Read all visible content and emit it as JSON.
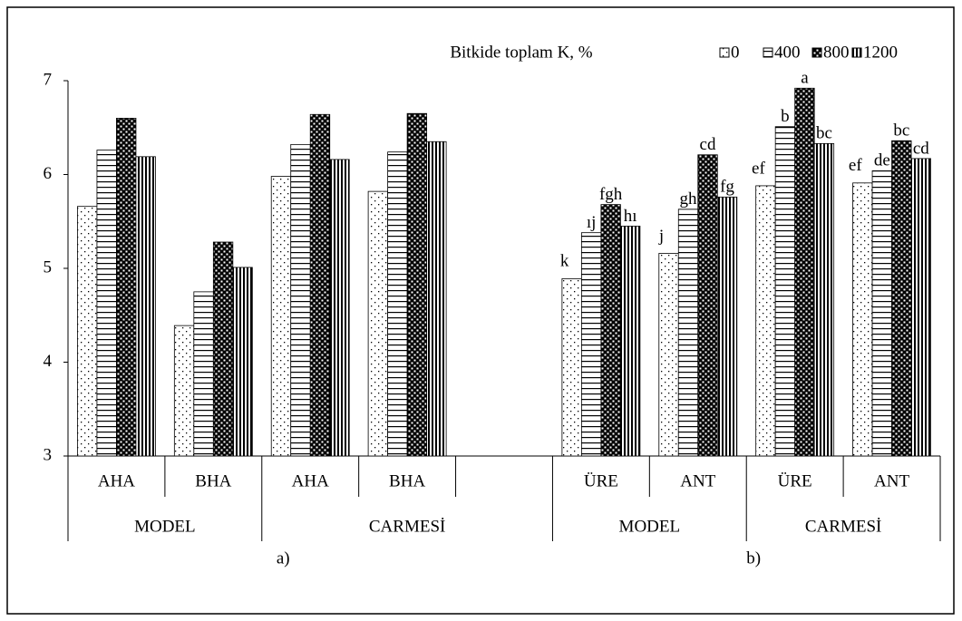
{
  "chart_data": {
    "type": "bar",
    "title": "Bitkide toplam K, %",
    "categories": [
      "AHA",
      "BHA",
      "AHA",
      "BHA",
      null,
      "ÜRE",
      "ANT",
      "ÜRE",
      "ANT"
    ],
    "groups": [
      {
        "name": "MODEL",
        "size": 2
      },
      {
        "name": "CARMESİ",
        "size": 3
      },
      {
        "name": "MODEL",
        "size": 2
      },
      {
        "name": "CARMESİ",
        "size": 2
      }
    ],
    "panels": [
      {
        "name": "a)",
        "size": 5
      },
      {
        "name": "b)",
        "size": 4
      }
    ],
    "series": [
      {
        "name": "0",
        "color": "#000000",
        "pattern": "sparse-dots",
        "values": [
          5.66,
          4.39,
          5.98,
          5.82,
          null,
          4.89,
          5.16,
          5.88,
          5.91
        ],
        "letters": [
          null,
          null,
          null,
          null,
          null,
          "k",
          "j",
          "ef",
          "ef"
        ]
      },
      {
        "name": "400",
        "color": "#000000",
        "pattern": "horizontal-lines",
        "values": [
          6.26,
          4.75,
          6.32,
          6.24,
          null,
          5.38,
          5.63,
          6.51,
          6.04
        ],
        "letters": [
          null,
          null,
          null,
          null,
          null,
          "ıj",
          "gh",
          "b",
          "de"
        ]
      },
      {
        "name": "800",
        "color": "#000000",
        "pattern": "dense-dots",
        "values": [
          6.6,
          5.28,
          6.64,
          6.65,
          null,
          5.68,
          6.21,
          6.92,
          6.36
        ],
        "letters": [
          null,
          null,
          null,
          null,
          null,
          "fgh",
          "cd",
          "a",
          "bc"
        ]
      },
      {
        "name": "1200",
        "color": "#000000",
        "pattern": "vertical-lines",
        "values": [
          6.19,
          5.01,
          6.16,
          6.35,
          null,
          5.45,
          5.76,
          6.33,
          6.17
        ],
        "letters": [
          null,
          null,
          null,
          null,
          null,
          "hı",
          "fg",
          "bc",
          "cd"
        ]
      }
    ],
    "ylim": [
      3,
      7
    ],
    "yticks": [
      3,
      4,
      5,
      6,
      7
    ],
    "grid": false,
    "legend": "top-right"
  }
}
